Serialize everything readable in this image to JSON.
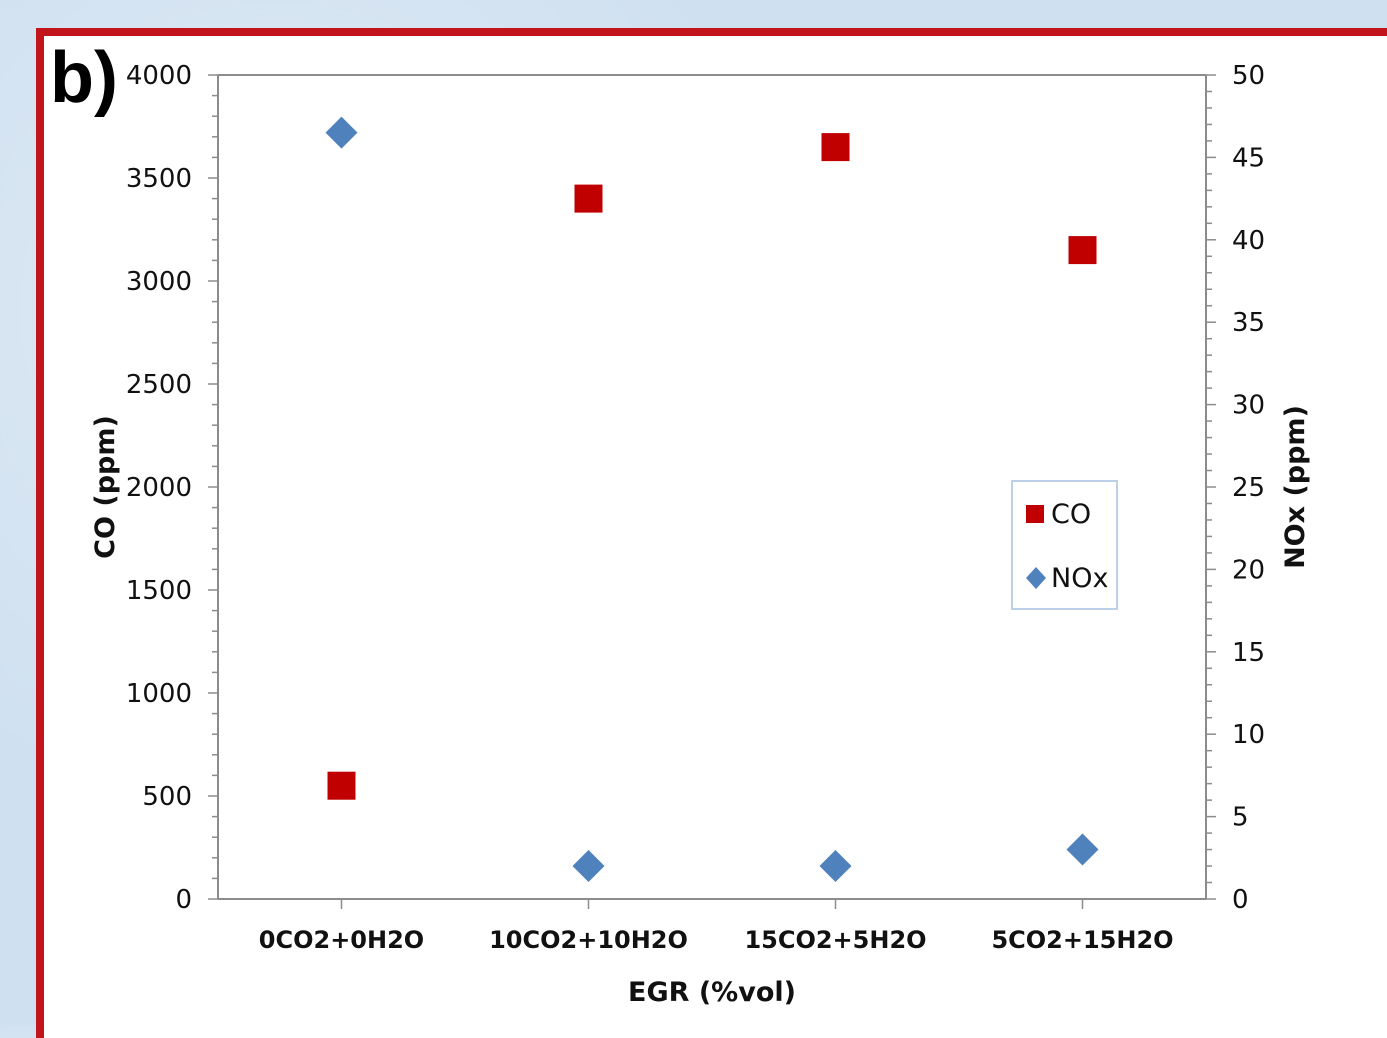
{
  "panel_label": "b)",
  "chart_data": {
    "type": "scatter",
    "categories": [
      "0CO2+0H2O",
      "10CO2+10H2O",
      "15CO2+5H2O",
      "5CO2+15H2O"
    ],
    "xlabel": "EGR (%vol)",
    "ylabel": "CO (ppm)",
    "y2label": "NOx (ppm)",
    "ylim": [
      0,
      4000
    ],
    "y2lim": [
      0,
      50
    ],
    "yticks": [
      "0",
      "500",
      "1000",
      "1500",
      "2000",
      "2500",
      "3000",
      "3500",
      "4000"
    ],
    "y2ticks": [
      "0",
      "5",
      "10",
      "15",
      "20",
      "25",
      "30",
      "35",
      "40",
      "45",
      "50"
    ],
    "series": [
      {
        "name": "CO",
        "axis": "left",
        "marker": "square",
        "color": "#c00000",
        "values": [
          550,
          3400,
          3650,
          3150
        ]
      },
      {
        "name": "NOx",
        "axis": "right",
        "marker": "diamond",
        "color": "#4f81bd",
        "values": [
          46.5,
          2.0,
          2.0,
          3.0
        ]
      }
    ],
    "legend": "right-center",
    "grid": false
  }
}
